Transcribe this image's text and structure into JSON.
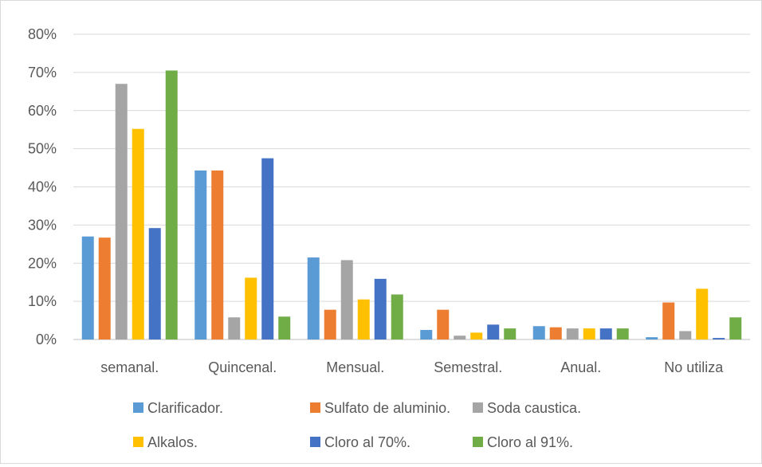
{
  "chart_data": {
    "type": "bar",
    "title": "",
    "xlabel": "",
    "ylabel": "",
    "ylim": [
      0,
      0.8
    ],
    "yticks": [
      "0%",
      "10%",
      "20%",
      "30%",
      "40%",
      "50%",
      "60%",
      "70%",
      "80%"
    ],
    "grid": true,
    "legend_position": "bottom",
    "categories": [
      "semanal.",
      "Quincenal.",
      "Mensual.",
      "Semestral.",
      "Anual.",
      "No utiliza"
    ],
    "series": [
      {
        "name": "Clarificador.",
        "color": "#5b9bd5",
        "values": [
          0.27,
          0.443,
          0.215,
          0.025,
          0.035,
          0.006
        ]
      },
      {
        "name": "Sulfato de aluminio.",
        "color": "#ed7d31",
        "values": [
          0.267,
          0.443,
          0.078,
          0.078,
          0.032,
          0.097
        ]
      },
      {
        "name": "Soda caustica.",
        "color": "#a5a5a5",
        "values": [
          0.67,
          0.058,
          0.208,
          0.01,
          0.029,
          0.022
        ]
      },
      {
        "name": "Alkalos.",
        "color": "#ffc000",
        "values": [
          0.552,
          0.162,
          0.105,
          0.018,
          0.029,
          0.133
        ]
      },
      {
        "name": "Cloro al 70%.",
        "color": "#4472c4",
        "values": [
          0.292,
          0.475,
          0.159,
          0.039,
          0.029,
          0.004
        ]
      },
      {
        "name": "Cloro al 91%.",
        "color": "#70ad47",
        "values": [
          0.705,
          0.06,
          0.118,
          0.029,
          0.029,
          0.058
        ]
      }
    ]
  }
}
